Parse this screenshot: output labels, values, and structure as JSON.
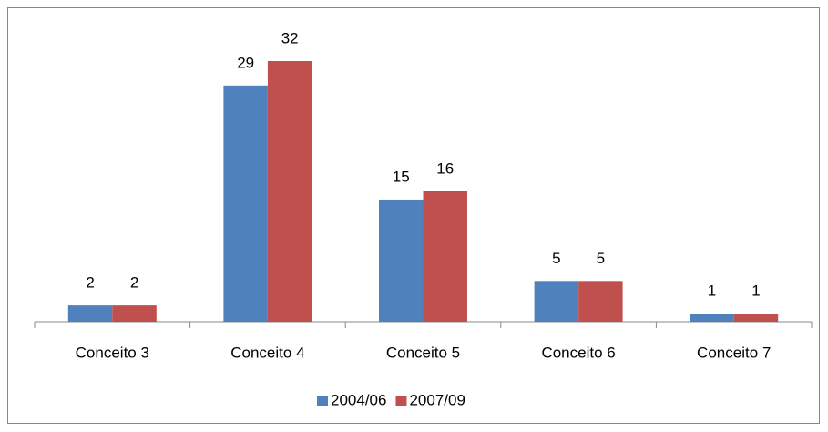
{
  "chart_data": {
    "type": "bar",
    "categories": [
      "Conceito 3",
      "Conceito 4",
      "Conceito 5",
      "Conceito 6",
      "Conceito 7"
    ],
    "series": [
      {
        "name": "2004/06",
        "color": "#4f81bd",
        "values": [
          2,
          29,
          15,
          5,
          1
        ]
      },
      {
        "name": "2007/09",
        "color": "#c0504d",
        "values": [
          2,
          32,
          16,
          5,
          1
        ]
      }
    ],
    "legend": "bottom"
  }
}
